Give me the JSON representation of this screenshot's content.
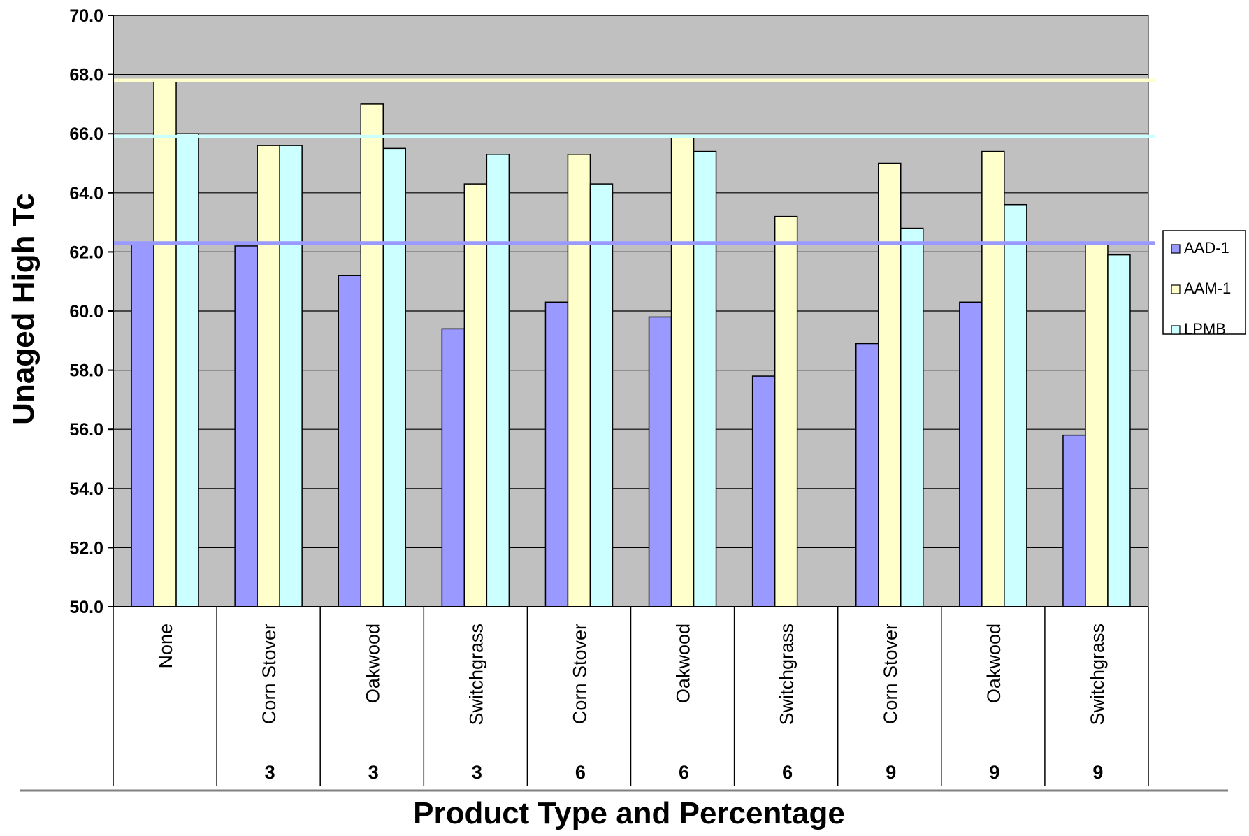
{
  "chart_data": {
    "type": "bar",
    "ylabel": "Unaged High Tc",
    "xlabel": "Product Type and Percentage",
    "ylim": [
      50.0,
      70.0
    ],
    "ytick_step": 2.0,
    "yticks": [
      "50.0",
      "52.0",
      "54.0",
      "56.0",
      "58.0",
      "60.0",
      "62.0",
      "64.0",
      "66.0",
      "68.0",
      "70.0"
    ],
    "grid": true,
    "legend_position": "right",
    "categories": [
      "None",
      "Corn Stover",
      "Oakwood",
      "Switchgrass",
      "Corn Stover",
      "Oakwood",
      "Switchgrass",
      "Corn Stover",
      "Oakwood",
      "Switchgrass"
    ],
    "percentages": [
      "",
      "3",
      "3",
      "3",
      "6",
      "6",
      "6",
      "9",
      "9",
      "9"
    ],
    "series": [
      {
        "name": "AAD-1",
        "color": "#9999ff",
        "values": [
          62.3,
          62.2,
          61.2,
          59.4,
          60.3,
          59.8,
          57.8,
          58.9,
          60.3,
          55.8
        ]
      },
      {
        "name": "AAM-1",
        "color": "#ffffcc",
        "values": [
          67.8,
          65.6,
          67.0,
          64.3,
          65.3,
          65.9,
          63.2,
          65.0,
          65.4,
          62.3
        ]
      },
      {
        "name": "LPMB",
        "color": "#ccffff",
        "values": [
          66.0,
          65.6,
          65.5,
          65.3,
          64.3,
          65.4,
          null,
          62.8,
          63.6,
          61.9
        ]
      }
    ],
    "reference_lines": [
      {
        "series": "AAD-1",
        "value": 62.3,
        "color": "#9999ff"
      },
      {
        "series": "AAM-1",
        "value": 67.8,
        "color": "#ffffcc"
      },
      {
        "series": "LPMB",
        "value": 65.9,
        "color": "#ccffff"
      }
    ],
    "plot_background": "#c0c0c0"
  }
}
